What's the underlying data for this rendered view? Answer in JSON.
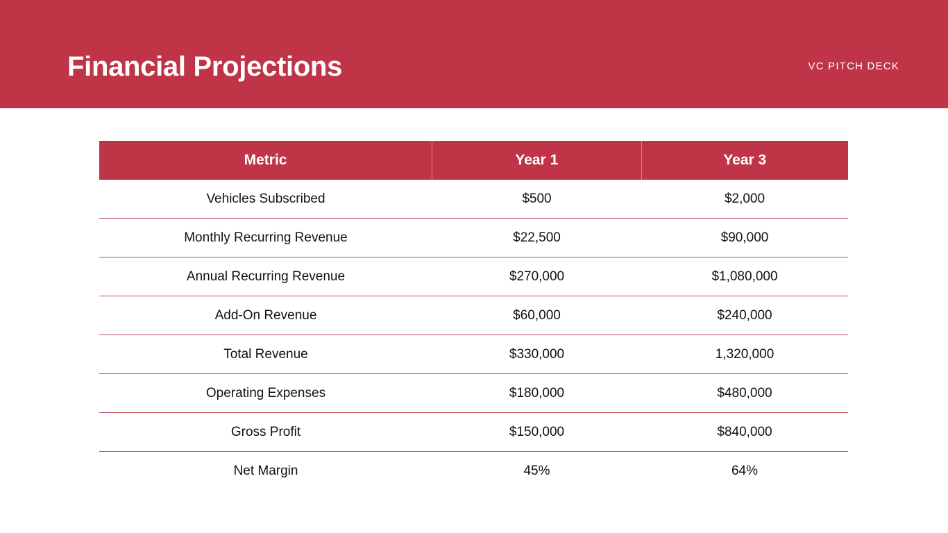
{
  "slide": {
    "title": "Financial Projections",
    "deck_label": "VC PITCH DECK",
    "accent_color": "#bf3446"
  },
  "table": {
    "headers": [
      "Metric",
      "Year 1",
      "Year 3"
    ],
    "rows": [
      [
        "Vehicles Subscribed",
        "$500",
        "$2,000"
      ],
      [
        "Monthly Recurring Revenue",
        "$22,500",
        "$90,000"
      ],
      [
        "Annual Recurring Revenue",
        "$270,000",
        "$1,080,000"
      ],
      [
        "Add-On Revenue",
        "$60,000",
        "$240,000"
      ],
      [
        "Total Revenue",
        "$330,000",
        "1,320,000"
      ],
      [
        "Operating Expenses",
        "$180,000",
        "$480,000"
      ],
      [
        "Gross Profit",
        "$150,000",
        "$840,000"
      ],
      [
        "Net Margin",
        "45%",
        "64%"
      ]
    ]
  }
}
